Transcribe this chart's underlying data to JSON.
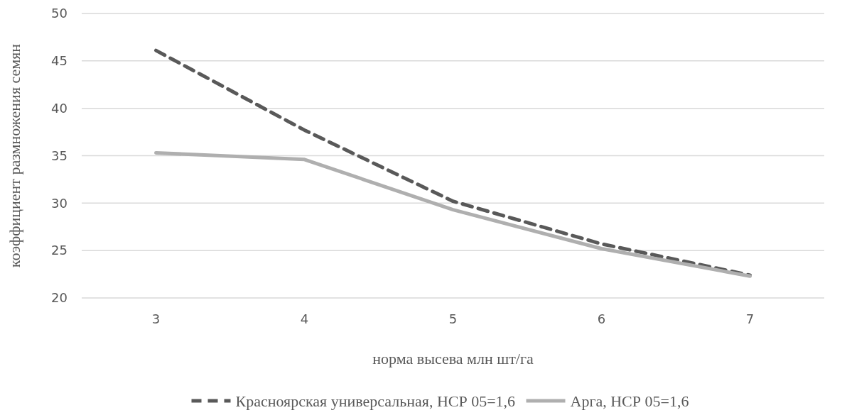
{
  "chart_data": {
    "type": "line",
    "xlabel": "норма высева млн шт/га",
    "ylabel": "коэффициент размножения семян",
    "categories": [
      "3",
      "4",
      "5",
      "6",
      "7"
    ],
    "series": [
      {
        "name": "Красноярская универсальная, НСР 05=1,6",
        "color": "#595959",
        "values": [
          46.1,
          37.7,
          30.2,
          25.7,
          22.4
        ],
        "line_style": "dashed"
      },
      {
        "name": "Арга, НСР 05=1,6",
        "color": "#afafaf",
        "values": [
          35.3,
          34.6,
          29.3,
          25.2,
          22.3
        ],
        "line_style": "solid"
      }
    ],
    "ylim": [
      20,
      50
    ],
    "yticks": [
      20,
      25,
      30,
      35,
      40,
      45,
      50
    ],
    "grid": "y",
    "legend": "bottom",
    "marker": "none"
  }
}
